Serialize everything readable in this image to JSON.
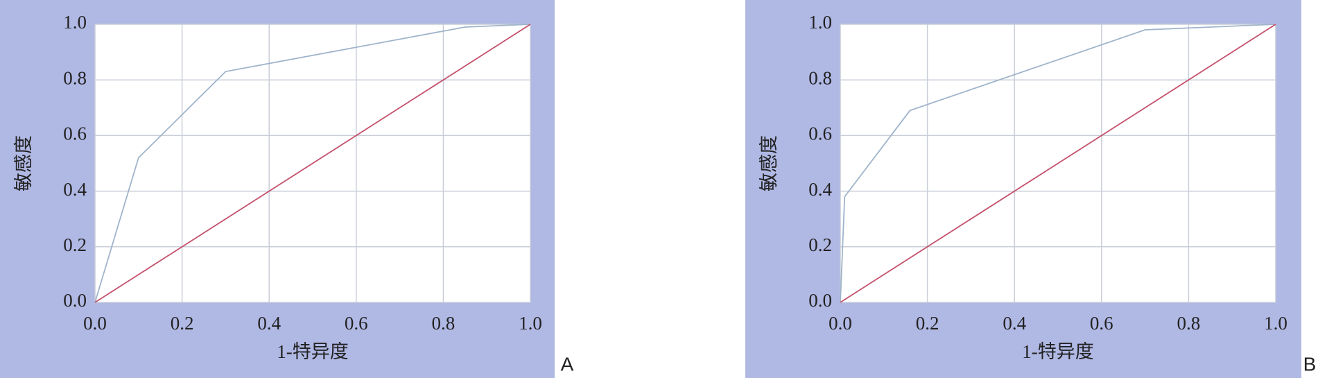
{
  "chart_data": [
    {
      "type": "line",
      "panel_label": "A",
      "xlabel": "1-特异度",
      "ylabel": "敏感度",
      "xlim": [
        0,
        1
      ],
      "ylim": [
        0,
        1
      ],
      "grid": true,
      "xticks": [
        {
          "value": 0,
          "label": "0.0"
        },
        {
          "value": 0.2,
          "label": "0.2"
        },
        {
          "value": 0.4,
          "label": "0.4"
        },
        {
          "value": 0.6,
          "label": "0.6"
        },
        {
          "value": 0.8,
          "label": "0.8"
        },
        {
          "value": 1,
          "label": "1.0"
        }
      ],
      "yticks": [
        {
          "value": 0,
          "label": "0.0"
        },
        {
          "value": 0.2,
          "label": "0.2"
        },
        {
          "value": 0.4,
          "label": "0.4"
        },
        {
          "value": 0.6,
          "label": "0.6"
        },
        {
          "value": 0.8,
          "label": "0.8"
        },
        {
          "value": 1,
          "label": "1.0"
        }
      ],
      "series": [
        {
          "color": "#9fb4cb",
          "x": [
            0,
            0.1,
            0.3,
            0.85,
            1
          ],
          "values": [
            0,
            0.52,
            0.83,
            0.99,
            1
          ]
        },
        {
          "color": "#c4506c",
          "x": [
            0,
            1
          ],
          "values": [
            0,
            1
          ]
        }
      ]
    },
    {
      "type": "line",
      "panel_label": "B",
      "xlabel": "1-特异度",
      "ylabel": "敏感度",
      "xlim": [
        0,
        1
      ],
      "ylim": [
        0,
        1
      ],
      "grid": true,
      "xticks": [
        {
          "value": 0,
          "label": "0.0"
        },
        {
          "value": 0.2,
          "label": "0.2"
        },
        {
          "value": 0.4,
          "label": "0.4"
        },
        {
          "value": 0.6,
          "label": "0.6"
        },
        {
          "value": 0.8,
          "label": "0.8"
        },
        {
          "value": 1,
          "label": "1.0"
        }
      ],
      "yticks": [
        {
          "value": 0,
          "label": "0.0"
        },
        {
          "value": 0.2,
          "label": "0.2"
        },
        {
          "value": 0.4,
          "label": "0.4"
        },
        {
          "value": 0.6,
          "label": "0.6"
        },
        {
          "value": 0.8,
          "label": "0.8"
        },
        {
          "value": 1,
          "label": "1.0"
        }
      ],
      "series": [
        {
          "color": "#9fb4cb",
          "x": [
            0,
            0.01,
            0.16,
            0.7,
            1
          ],
          "values": [
            0,
            0.38,
            0.69,
            0.98,
            1
          ]
        },
        {
          "color": "#c4506c",
          "x": [
            0,
            1
          ],
          "values": [
            0,
            1
          ]
        }
      ]
    }
  ]
}
